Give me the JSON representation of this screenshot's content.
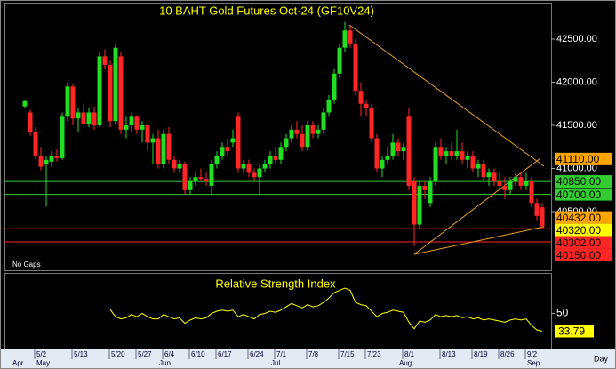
{
  "chart_data": {
    "type": "candlestick",
    "title": "10 BAHT Gold Futures Oct-24 (GF10V24)",
    "note": "No Gaps",
    "x_label": "Day",
    "categories": [
      null,
      null,
      "5/2",
      null,
      null,
      null,
      null,
      null,
      null,
      "5/13",
      null,
      null,
      null,
      null,
      null,
      null,
      "5/20",
      null,
      null,
      null,
      null,
      "5/27",
      null,
      null,
      null,
      null,
      "6/4",
      null,
      null,
      null,
      null,
      "6/10",
      null,
      null,
      null,
      null,
      "6/17",
      null,
      null,
      null,
      null,
      null,
      "6/24",
      null,
      null,
      null,
      null,
      "7/1",
      null,
      null,
      null,
      null,
      null,
      "7/8",
      null,
      null,
      null,
      null,
      null,
      "7/15",
      null,
      null,
      null,
      null,
      "7/23",
      null,
      null,
      null,
      null,
      null,
      null,
      "8/1",
      null,
      null,
      null,
      null,
      null,
      null,
      "8/13",
      null,
      null,
      null,
      null,
      null,
      "8/19",
      null,
      null,
      null,
      null,
      "8/26",
      null,
      null,
      null,
      null,
      "9/2",
      null,
      null,
      null
    ],
    "months": [
      "Apr",
      null,
      "May",
      null,
      null,
      null,
      null,
      null,
      null,
      null,
      null,
      null,
      null,
      null,
      null,
      null,
      null,
      null,
      null,
      null,
      null,
      null,
      null,
      null,
      null,
      "Jun",
      null,
      null,
      null,
      null,
      null,
      null,
      null,
      null,
      null,
      null,
      null,
      null,
      null,
      null,
      null,
      null,
      null,
      null,
      null,
      null,
      "Jul",
      null,
      null,
      null,
      null,
      null,
      null,
      null,
      null,
      null,
      null,
      null,
      null,
      null,
      null,
      null,
      null,
      null,
      null,
      null,
      null,
      null,
      null,
      null,
      "Aug",
      null,
      null,
      null,
      null,
      null,
      null,
      null,
      null,
      null,
      null,
      null,
      null,
      null,
      null,
      null,
      null,
      null,
      null,
      null,
      null,
      null,
      null,
      null,
      "Sep",
      null,
      null,
      null
    ],
    "open": [
      41720,
      41650,
      41420,
      41150,
      41050,
      41080,
      41150,
      41120,
      41600,
      41950,
      41580,
      41650,
      41520,
      41650,
      41500,
      42300,
      42200,
      41550,
      42300,
      41450,
      41500,
      41600,
      41450,
      41500,
      41300,
      41350,
      41050,
      41400,
      41100,
      41000,
      41050,
      40750,
      40850,
      40900,
      40880,
      40800,
      41050,
      41150,
      41250,
      41300,
      41600,
      41000,
      41050,
      40950,
      40900,
      41000,
      41050,
      41150,
      41100,
      41250,
      41350,
      41450,
      41400,
      41250,
      41500,
      41400,
      41450,
      41650,
      41800,
      42100,
      42400,
      42600,
      42450,
      41900,
      41750,
      41700,
      41350,
      41000,
      41100,
      41150,
      41300,
      41200,
      41600,
      40850,
      40350,
      40800,
      40600,
      40850,
      41250,
      41150,
      41200,
      41150,
      41200,
      41100,
      41150,
      41000,
      41050,
      40900,
      40950,
      40850,
      40800,
      40750,
      40850,
      40900,
      40800,
      40850,
      40600,
      40550
    ],
    "high": [
      41800,
      41680,
      41480,
      41250,
      41150,
      41200,
      41220,
      41650,
      42000,
      41980,
      41700,
      41750,
      41700,
      41720,
      42350,
      42380,
      42250,
      42450,
      42350,
      41600,
      41650,
      41620,
      41550,
      41520,
      41400,
      41450,
      41450,
      41480,
      41150,
      41100,
      41080,
      40900,
      40950,
      41000,
      40950,
      41100,
      41200,
      41300,
      41350,
      41450,
      41650,
      41100,
      41100,
      41000,
      41050,
      41100,
      41200,
      41250,
      41300,
      41400,
      41500,
      41550,
      41500,
      41550,
      41550,
      41500,
      41700,
      41850,
      42150,
      42450,
      42700,
      42650,
      42500,
      42000,
      41800,
      41750,
      41400,
      41150,
      41250,
      41400,
      41350,
      41300,
      41700,
      40900,
      40850,
      40850,
      40900,
      41300,
      41350,
      41250,
      41300,
      41450,
      41300,
      41200,
      41200,
      41100,
      41100,
      41000,
      41000,
      40950,
      40900,
      40900,
      40950,
      40950,
      40950,
      40900,
      40650,
      40600
    ],
    "low": [
      41700,
      41380,
      41100,
      40980,
      40560,
      41020,
      41080,
      41100,
      41550,
      41500,
      41420,
      41500,
      41480,
      41450,
      41480,
      42150,
      41480,
      41500,
      41400,
      41350,
      41420,
      41400,
      41300,
      41200,
      41050,
      41000,
      41000,
      41050,
      40950,
      40950,
      40700,
      40700,
      40800,
      40850,
      40800,
      40700,
      41000,
      41100,
      41150,
      41250,
      40950,
      40950,
      40900,
      40850,
      40700,
      40950,
      41000,
      41050,
      41050,
      41200,
      41300,
      41350,
      41200,
      41200,
      41350,
      41350,
      41400,
      41600,
      41750,
      42050,
      42350,
      42400,
      41850,
      41600,
      41600,
      41300,
      40950,
      40900,
      41050,
      41100,
      41150,
      41100,
      40750,
      40100,
      40300,
      40650,
      40550,
      40800,
      41100,
      41050,
      41100,
      41100,
      41050,
      41000,
      40950,
      40900,
      40850,
      40800,
      40800,
      40750,
      40650,
      40700,
      40800,
      40750,
      40750,
      40550,
      40400,
      40300
    ],
    "close": [
      41780,
      41420,
      41150,
      41020,
      41100,
      41150,
      41120,
      41600,
      41950,
      41580,
      41650,
      41520,
      41650,
      41500,
      42300,
      42200,
      41550,
      42400,
      41450,
      41500,
      41600,
      41450,
      41500,
      41300,
      41350,
      41050,
      41400,
      41100,
      41000,
      41050,
      40750,
      40850,
      40900,
      40880,
      40850,
      41050,
      41150,
      41250,
      41200,
      41350,
      41000,
      41050,
      40950,
      40900,
      41000,
      41050,
      41150,
      41100,
      41250,
      41350,
      41450,
      41400,
      41250,
      41500,
      41400,
      41450,
      41650,
      41800,
      42100,
      42400,
      42600,
      42450,
      41900,
      41750,
      41700,
      41350,
      41000,
      41100,
      41150,
      41300,
      41200,
      41250,
      40800,
      40350,
      40800,
      40750,
      40850,
      41250,
      41150,
      41200,
      41150,
      41200,
      41100,
      41150,
      41000,
      41050,
      40900,
      40950,
      40850,
      40800,
      40750,
      40850,
      40900,
      40800,
      40850,
      40600,
      40450,
      40330
    ],
    "up_color": "#22dd22",
    "down_color": "#ff2626",
    "ylim": [
      39820,
      42912
    ],
    "yticks": [
      {
        "value": 42500,
        "label": "42500.00"
      },
      {
        "value": 42000,
        "label": "42000.00"
      },
      {
        "value": 41500,
        "label": "41500.00"
      },
      {
        "value": 41000,
        "label": "41000.00"
      },
      {
        "value": 40500,
        "label": "40500.00"
      }
    ],
    "levels": [
      {
        "value": 41110,
        "label": "41110.00",
        "color": "#ffa500",
        "line": false
      },
      {
        "value": 40850,
        "label": "40850.00",
        "color": "#33cc33",
        "line": true
      },
      {
        "value": 40700,
        "label": "40700.00",
        "color": "#33cc33",
        "line": true
      },
      {
        "value": 40432,
        "label": "40432.00",
        "color": "#ffa500",
        "line": false
      },
      {
        "value": 40320,
        "label": "40320.00",
        "color": "#ffff00",
        "line": false
      },
      {
        "value": 40302,
        "label": "40302.00",
        "color": "#ff2626",
        "line": true
      },
      {
        "value": 40150,
        "label": "40150.00",
        "color": "#ff2626",
        "line": true
      }
    ],
    "rsi": {
      "title": "Relative Strength Index",
      "color": "#ffff00",
      "ylim": [
        18,
        86
      ],
      "yticks": [
        50
      ],
      "values": [
        null,
        null,
        null,
        null,
        null,
        null,
        null,
        null,
        null,
        null,
        null,
        null,
        null,
        null,
        null,
        null,
        53.5,
        47,
        45,
        46,
        49,
        47,
        50,
        47,
        45,
        45,
        49,
        47,
        45,
        46,
        41,
        44,
        46,
        45,
        46,
        50,
        52,
        53,
        52,
        53,
        47,
        49,
        47,
        45,
        49,
        50,
        52,
        51,
        53,
        56,
        59,
        57,
        55,
        58,
        56,
        57,
        60,
        64,
        69,
        71,
        73,
        71,
        60,
        58,
        57,
        52,
        47,
        50,
        51,
        53,
        52,
        51,
        42,
        36,
        43,
        42,
        44,
        49,
        47,
        48,
        47,
        48,
        46,
        47,
        45,
        46,
        44,
        45,
        44,
        43,
        42,
        44,
        45,
        44,
        45,
        39,
        35,
        33.79
      ]
    }
  }
}
